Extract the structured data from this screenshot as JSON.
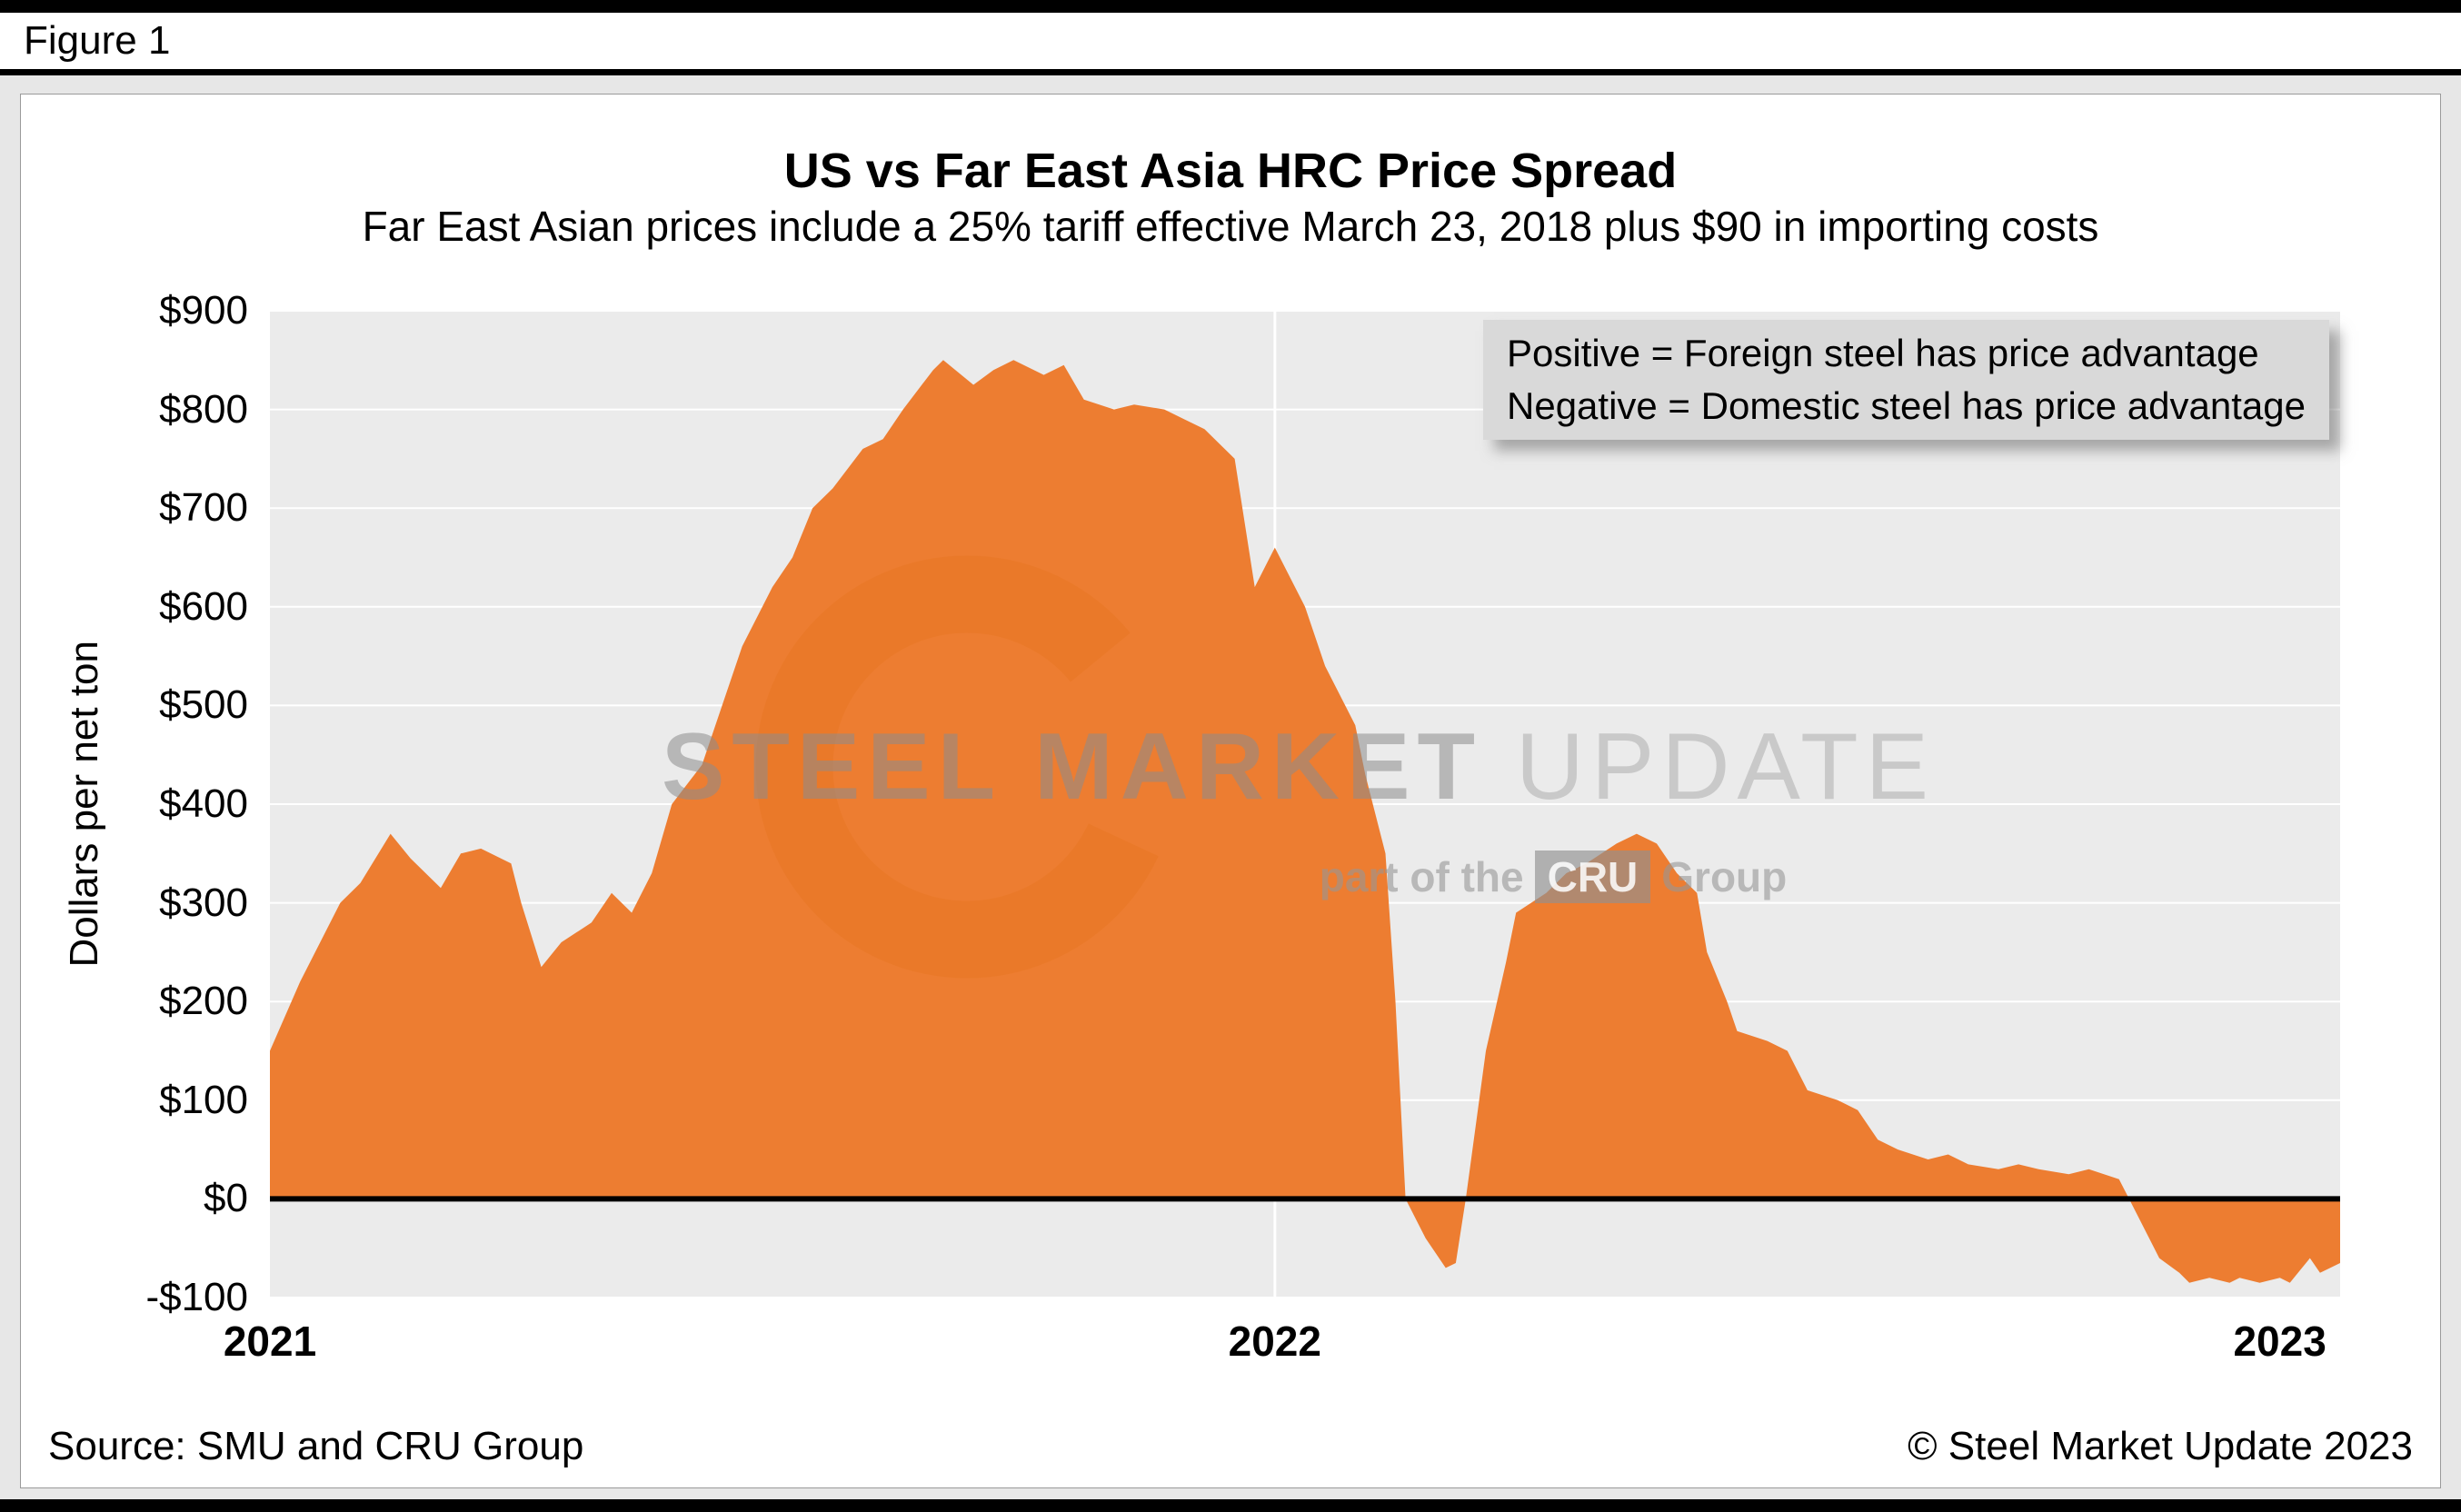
{
  "figure_label": "Figure 1",
  "footer": {
    "source": "Source: SMU and CRU Group",
    "copyright": "© Steel Market Update 2023"
  },
  "watermark": {
    "brand_bold": "STEEL MARKET",
    "brand_light": " UPDATE",
    "tagline_prefix": "part of the",
    "tagline_cru": "CRU",
    "tagline_suffix": "Group"
  },
  "chart_data": {
    "type": "area",
    "title": "US vs Far East Asia HRC Price Spread",
    "subtitle": "Far East Asian prices include a 25% tariff effective March 23, 2018 plus $90 in importing costs",
    "ylabel": "Dollars per net ton",
    "ylim": [
      -100,
      900
    ],
    "ytick_step": 100,
    "ytick_labels": [
      "-$100",
      "$0",
      "$100",
      "$200",
      "$300",
      "$400",
      "$500",
      "$600",
      "$700",
      "$800",
      "$900"
    ],
    "xlim": [
      2021,
      2023.06
    ],
    "xticks": [
      2021,
      2022,
      2023
    ],
    "xtick_labels": [
      "2021",
      "2022",
      "2023"
    ],
    "grid_x": [
      2022
    ],
    "grid": "on",
    "legend_position": "top-right",
    "annotation": [
      "Positive = Foreign steel has price advantage",
      "Negative = Domestic steel has price advantage"
    ],
    "colors": {
      "series": "#ED7D31",
      "plot_bg": "#EBEBEB",
      "annotation_bg": "#D9D9D9",
      "zero_line": "#000000"
    },
    "x": [
      2021.0,
      2021.03,
      2021.07,
      2021.09,
      2021.12,
      2021.14,
      2021.17,
      2021.19,
      2021.21,
      2021.24,
      2021.25,
      2021.27,
      2021.29,
      2021.32,
      2021.34,
      2021.36,
      2021.38,
      2021.4,
      2021.43,
      2021.45,
      2021.47,
      2021.5,
      2021.52,
      2021.54,
      2021.56,
      2021.59,
      2021.61,
      2021.63,
      2021.66,
      2021.67,
      2021.7,
      2021.72,
      2021.74,
      2021.77,
      2021.79,
      2021.81,
      2021.84,
      2021.86,
      2021.89,
      2021.91,
      2021.93,
      2021.96,
      2021.98,
      2022.0,
      2022.03,
      2022.05,
      2022.08,
      2022.09,
      2022.11,
      2022.12,
      2022.13,
      2022.15,
      2022.17,
      2022.18,
      2022.19,
      2022.21,
      2022.23,
      2022.24,
      2022.27,
      2022.29,
      2022.31,
      2022.34,
      2022.36,
      2022.38,
      2022.4,
      2022.42,
      2022.43,
      2022.45,
      2022.46,
      2022.49,
      2022.51,
      2022.53,
      2022.56,
      2022.58,
      2022.6,
      2022.62,
      2022.65,
      2022.67,
      2022.69,
      2022.72,
      2022.74,
      2022.76,
      2022.79,
      2022.81,
      2022.84,
      2022.85,
      2022.87,
      2022.88,
      2022.9,
      2022.91,
      2022.93,
      2022.95,
      2022.96,
      2022.98,
      2023.0,
      2023.01,
      2023.03,
      2023.04,
      2023.06
    ],
    "y": [
      150,
      220,
      300,
      320,
      370,
      345,
      315,
      350,
      355,
      340,
      300,
      235,
      260,
      280,
      310,
      290,
      330,
      400,
      440,
      500,
      560,
      620,
      650,
      700,
      720,
      760,
      770,
      800,
      840,
      850,
      825,
      840,
      850,
      835,
      845,
      810,
      800,
      805,
      800,
      790,
      780,
      750,
      620,
      660,
      600,
      540,
      480,
      430,
      350,
      200,
      0,
      -40,
      -70,
      -65,
      0,
      150,
      240,
      290,
      310,
      330,
      340,
      360,
      370,
      360,
      330,
      310,
      250,
      200,
      170,
      160,
      150,
      110,
      100,
      90,
      60,
      50,
      40,
      45,
      35,
      30,
      35,
      30,
      25,
      30,
      20,
      0,
      -40,
      -60,
      -75,
      -85,
      -80,
      -85,
      -80,
      -85,
      -80,
      -85,
      -60,
      -75,
      -65
    ]
  }
}
